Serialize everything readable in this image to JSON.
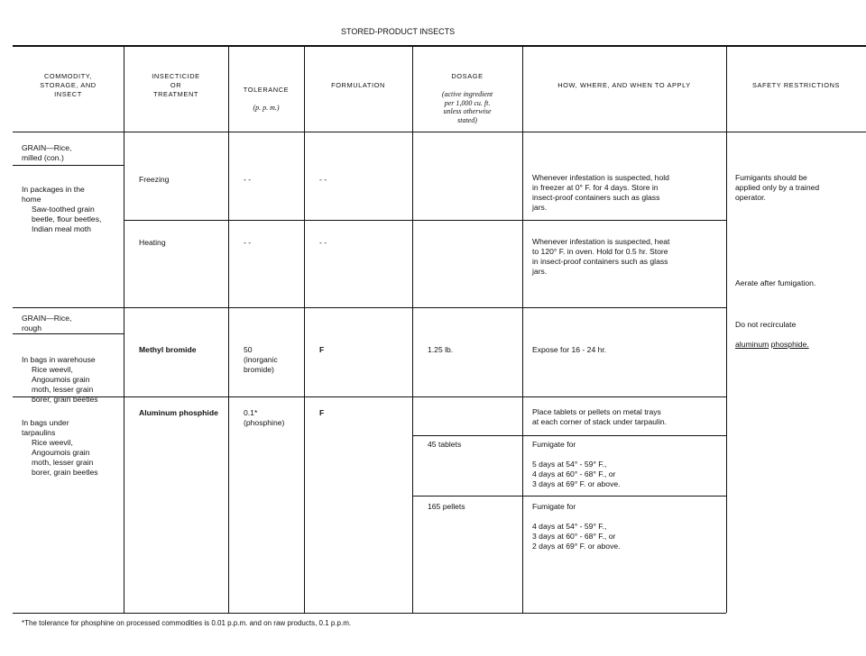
{
  "title": "STORED-PRODUCT INSECTS",
  "headers": {
    "commodity": "COMMODITY,\nSTORAGE, AND\nINSECT",
    "insecticide": "INSECTICIDE\nOR\nTREATMENT",
    "tolerance": "TOLERANCE",
    "tolerance_unit": "(p. p. m.)",
    "formulation": "FORMULATION",
    "dosage": "DOSAGE",
    "dosage_note": "(active ingredient\nper 1,000 cu. ft.\nunless otherwise\nstated)",
    "how": "HOW, WHERE, AND WHEN TO APPLY",
    "safety": "SAFETY RESTRICTIONS"
  },
  "rows": {
    "milled": {
      "commodity": "GRAIN—Rice,\nmilled (con.)",
      "storage": "In packages in the\nhome",
      "insects": "Saw-toothed grain\nbeetle, flour beetles,\nIndian meal moth"
    },
    "freezing": {
      "treatment": "Freezing",
      "tolerance": "- -",
      "formulation": "- -",
      "how": "Whenever infestation is suspected, hold\nin freezer at 0° F. for 4 days. Store in\ninsect-proof containers such as glass\njars."
    },
    "heating": {
      "treatment": "Heating",
      "tolerance": "- -",
      "formulation": "- -",
      "how": "Whenever infestation is suspected, heat\nto 120° F. in oven. Hold for 0.5 hr. Store\nin insect-proof containers such as glass\njars."
    },
    "rough": {
      "commodity": "GRAIN—Rice,\nrough",
      "storage": "In bags in warehouse",
      "insects": "Rice weevil,\nAngoumois grain\nmoth, lesser grain\nborer, grain beetles",
      "treatment": "Methyl bromide",
      "tolerance": "50\n(inorganic\nbromide)",
      "formulation": "F",
      "dosage": "1.25 lb.",
      "how": "Expose for 16 - 24 hr."
    },
    "tarpaulin": {
      "storage": "In bags under\ntarpaulins",
      "insects": "Rice weevil,\nAngoumois grain\nmoth, lesser grain\nborer, grain beetles",
      "treatment": "Aluminum phosphide",
      "tolerance": "0.1*\n(phosphine)",
      "formulation": "F",
      "how_place": "Place tablets or pellets on metal trays\nat each corner of stack under tarpaulin.",
      "tablets_dosage": "45 tablets",
      "tablets_how": "Fumigate for\n\n5 days at 54° - 59° F.,\n4 days at 60° - 68° F., or\n3 days at 69° F. or above.",
      "pellets_dosage": "165 pellets",
      "pellets_how": "Fumigate for\n\n4 days at 54° - 59° F.,\n3 days at 60° - 68° F., or\n2 days at 69° F. or above."
    }
  },
  "safety": {
    "fumigants": "Fumigants should be\napplied only by a trained\noperator.",
    "aerate": "Aerate after fumigation.",
    "recirculate": "Do not recirculate",
    "recirculate_u1": "aluminum",
    "recirculate_u2": "phosphide."
  },
  "footnote": "*The tolerance for phosphine on processed commodities is 0.01 p.p.m. and on raw products, 0.1 p.p.m."
}
